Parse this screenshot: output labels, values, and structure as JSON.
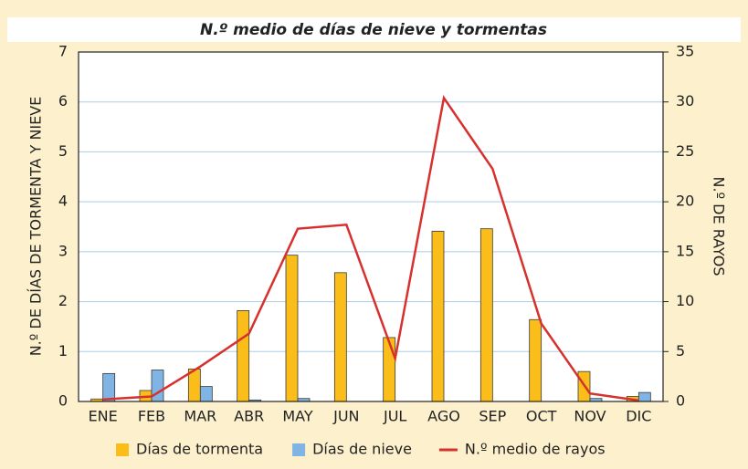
{
  "chart_data": {
    "type": "bar_line",
    "title": "N.º medio de días de nieve y tormentas",
    "y_label": "N.º  DE DÍAS DE TORMENTA Y NIEVE",
    "y2_label": "N.º  DE RAYOS",
    "categories": [
      "ENE",
      "FEB",
      "MAR",
      "ABR",
      "MAY",
      "JUN",
      "JUL",
      "AGO",
      "SEP",
      "OCT",
      "NOV",
      "DIC"
    ],
    "series": [
      {
        "name": "Días de tormenta",
        "type": "bar",
        "color": "#fbbd1a",
        "values": [
          0.05,
          0.22,
          0.65,
          1.82,
          2.93,
          2.58,
          1.28,
          3.41,
          3.46,
          1.64,
          0.6,
          0.1
        ]
      },
      {
        "name": "Días de nieve",
        "type": "bar",
        "color": "#7fb4e4",
        "values": [
          0.56,
          0.63,
          0.3,
          0.03,
          0.06,
          0,
          0,
          0,
          0,
          0,
          0.06,
          0.18
        ]
      },
      {
        "name": "N.º medio de rayos",
        "type": "line",
        "axis": "y2",
        "color": "#d7312e",
        "values": [
          0.2,
          0.5,
          3.5,
          6.8,
          17.3,
          17.7,
          4.3,
          30.4,
          23.3,
          7.8,
          0.8,
          0.1
        ]
      }
    ],
    "ylim": [
      0,
      7
    ],
    "yticks": [
      0,
      1,
      2,
      3,
      4,
      5,
      6,
      7
    ],
    "y2lim": [
      0,
      35
    ],
    "y2ticks": [
      0,
      5,
      10,
      15,
      20,
      25,
      30,
      35
    ],
    "grid": true
  }
}
